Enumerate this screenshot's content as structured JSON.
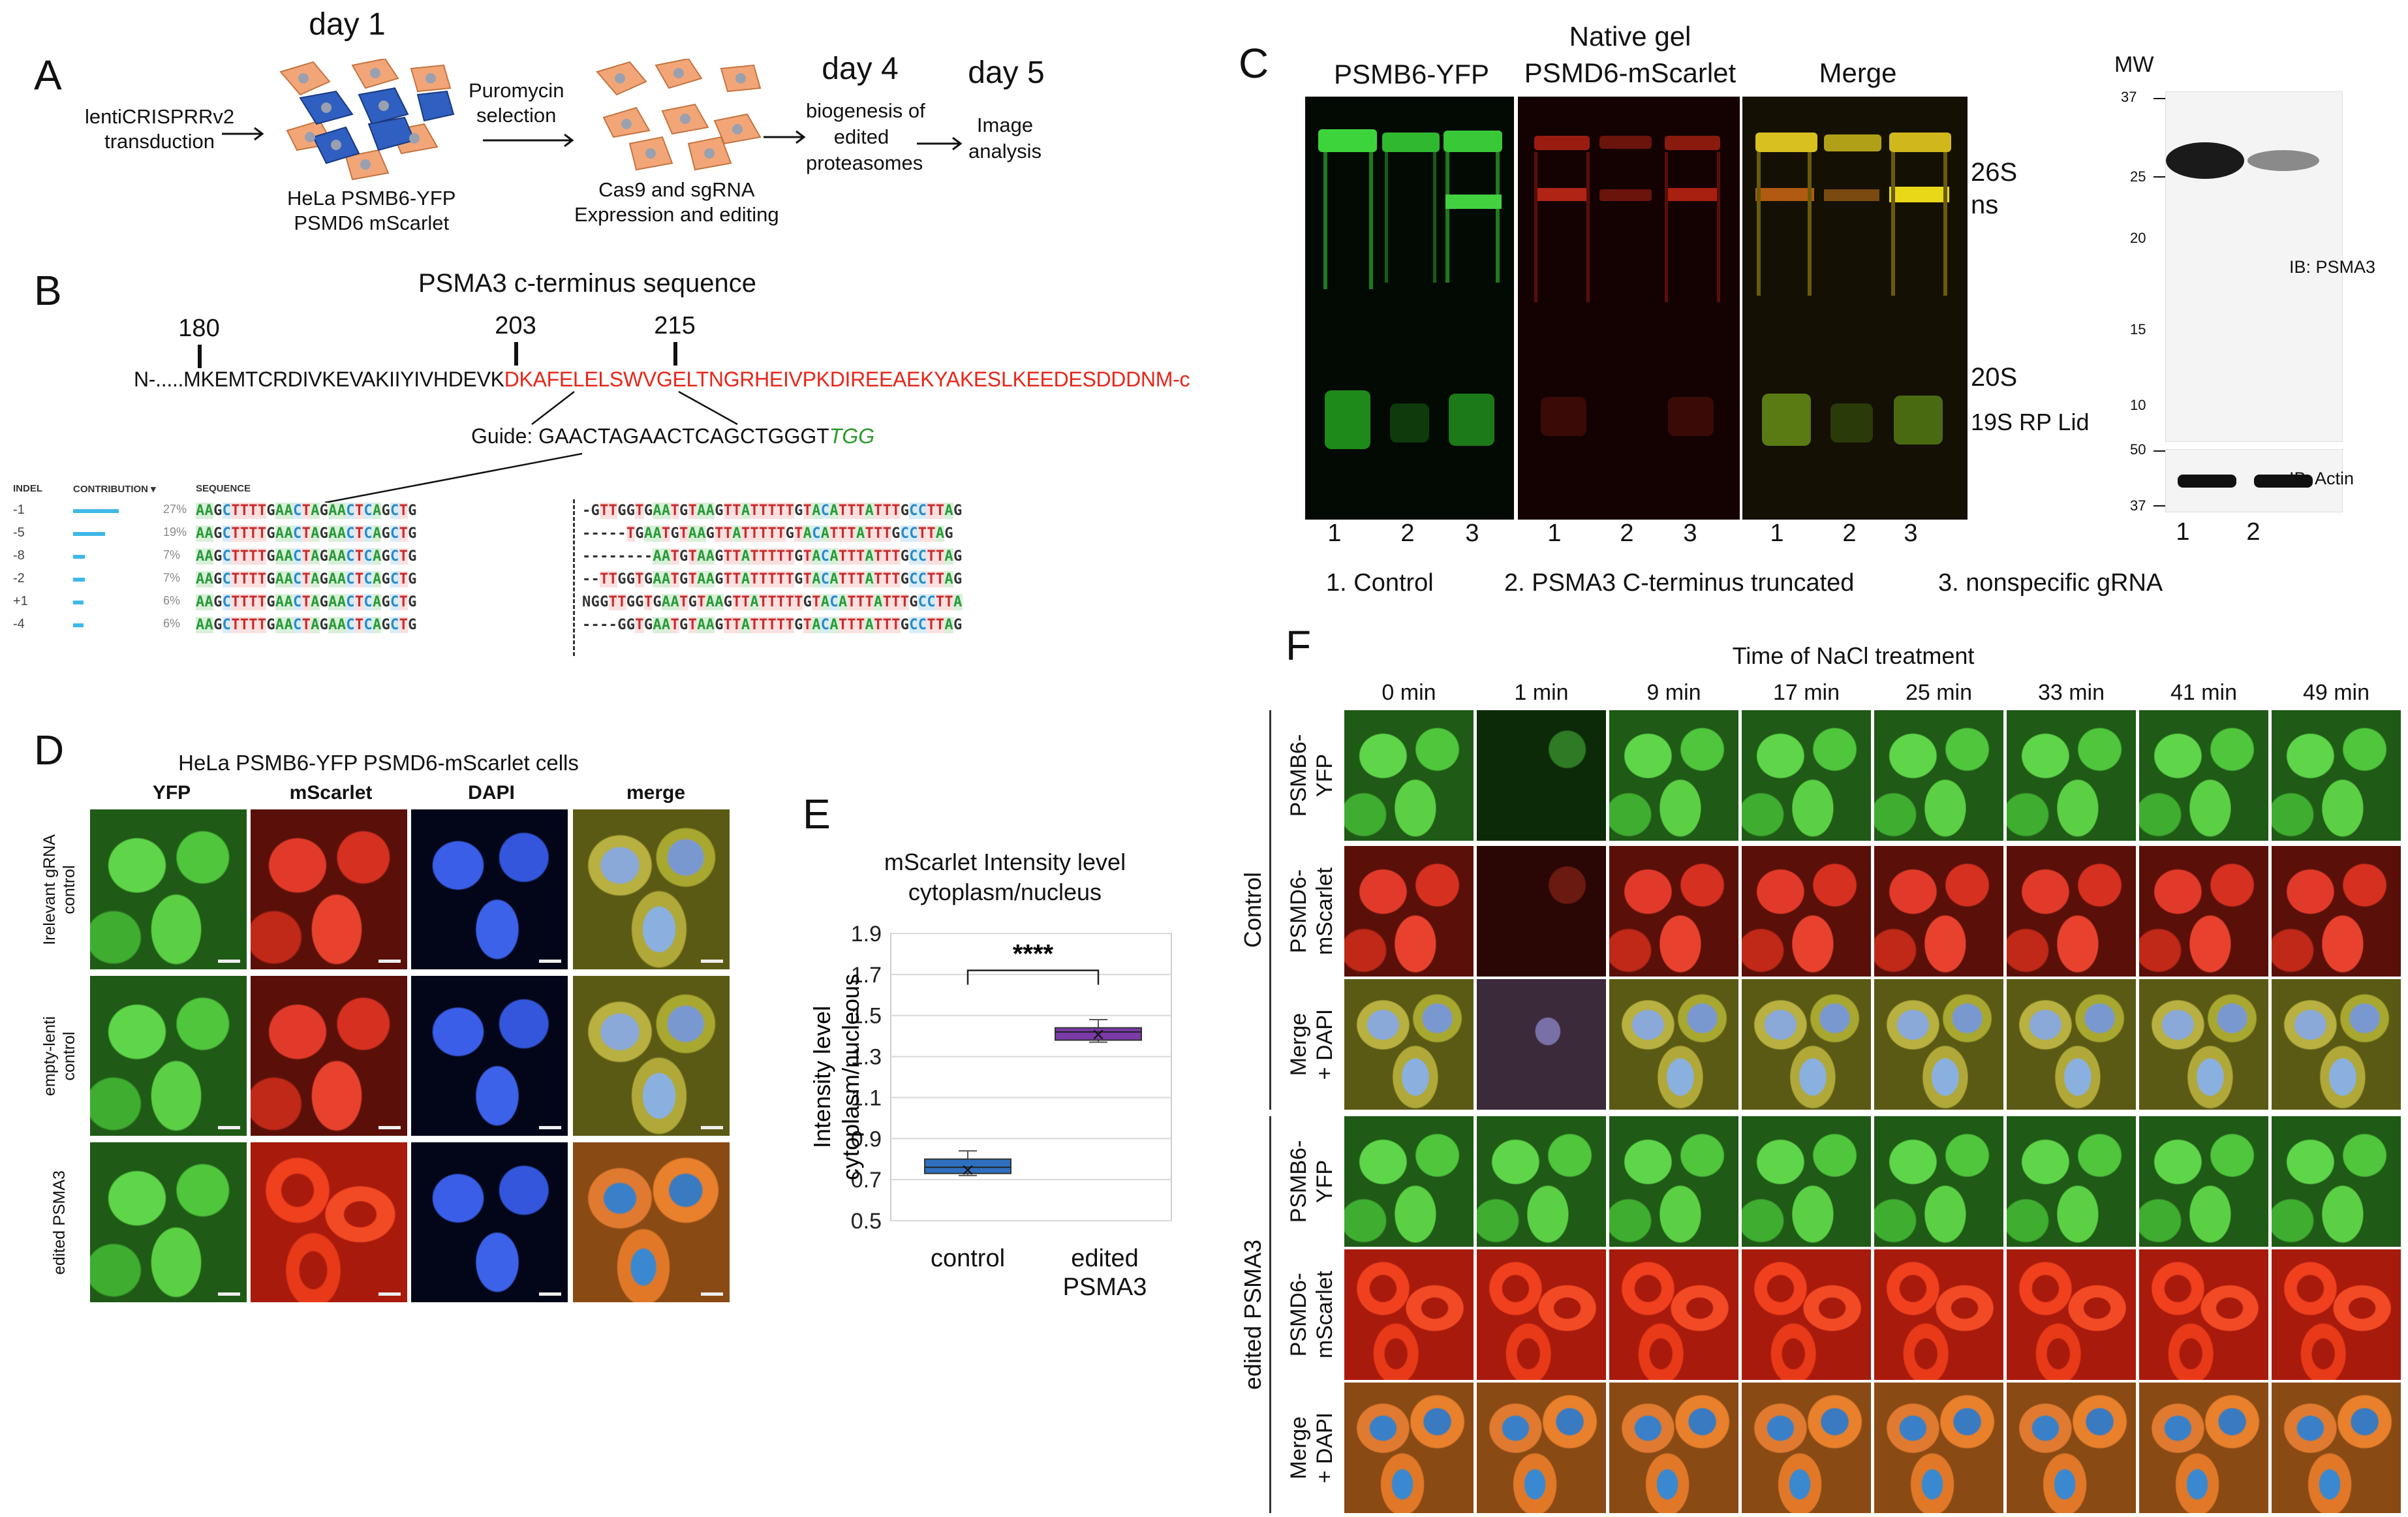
{
  "panelA": {
    "label": "A",
    "day1": "day 1",
    "transduction": [
      "lentiCRISPRRv2",
      "transduction"
    ],
    "cells_caption": [
      "HeLa PSMB6-YFP",
      "PSMD6 mScarlet"
    ],
    "selection": [
      "Puromycin",
      "selection"
    ],
    "cas9_caption": [
      "Cas9 and sgRNA",
      "Expression and editing"
    ],
    "day4": "day 4",
    "biogenesis": [
      "biogenesis of",
      "edited",
      "proteasomes"
    ],
    "day5": "day 5",
    "image_analysis": [
      "Image",
      "analysis"
    ]
  },
  "panelB": {
    "label": "B",
    "title": "PSMA3 c-terminus sequence",
    "pos1": "180",
    "pos2": "203",
    "pos3": "215",
    "seq_black": "N-.....MKEMTCRDIVKEVAKIIYIVHDEVK",
    "seq_red": "DKAFELELSWVGELTNGRHEIVPKDIREEAEKYAKESLKEEDESDDDNM-c",
    "guide_prefix": "Guide: GAACTAGAACTCAGCTGGGT",
    "guide_pam": "TGG",
    "table_headers": [
      "INDEL",
      "CONTRIBUTION ▾",
      "SEQUENCE"
    ],
    "rows": [
      {
        "indel": "-1",
        "pct": "27%",
        "left": "AAGCTTTTGAACTAGAACTCAGCTG",
        "right": "-GTTGGTGAATGTAAGTTATTTTTGTACATTTATTTGCCTTAG"
      },
      {
        "indel": "-5",
        "pct": "19%",
        "left": "AAGCTTTTGAACTAGAACTCAGCTG",
        "right": "-----TGAATGTAAGTTATTTTTGTACATTTATTTGCCTTAG"
      },
      {
        "indel": "-8",
        "pct": "7%",
        "left": "AAGCTTTTGAACTAGAACTCAGCTG",
        "right": "--------AATGTAAGTTATTTTTGTACATTTATTTGCCTTAG"
      },
      {
        "indel": "-2",
        "pct": "7%",
        "left": "AAGCTTTTGAACTAGAACTCAGCTG",
        "right": "--TTGGTGAATGTAAGTTATTTTTGTACATTTATTTGCCTTAG"
      },
      {
        "indel": "+1",
        "pct": "6%",
        "left": "AAGCTTTTGAACTAGAACTCAGCTG",
        "right": "NGGTTGGTGAATGTAAGTTATTTTTGTACATTTATTTGCCTTA"
      },
      {
        "indel": "-4",
        "pct": "6%",
        "left": "AAGCTTTTGAACTAGAACTCAGCTG",
        "right": "----GGTGAATGTAAGTTATTTTTGTACATTTATTTGCCTTAG"
      }
    ]
  },
  "panelC": {
    "label": "C",
    "native_gel": "Native gel",
    "col1": "PSMB6-YFP",
    "col2": "PSMD6-mScarlet",
    "col3": "Merge",
    "mw": "MW",
    "bands": [
      "26S",
      "ns",
      "20S",
      "19S RP Lid"
    ],
    "lanes": [
      "1",
      "2",
      "3"
    ],
    "legend": [
      "1.   Control",
      "2. PSMA3 C-terminus  truncated",
      "3. nonspecific gRNA"
    ],
    "mw_marks": [
      "37",
      "25",
      "20",
      "15",
      "10",
      "50",
      "37"
    ],
    "ib_psma3": "IB: PSMA3",
    "ib_actin": "IB: Actin",
    "wb_lanes": [
      "1",
      "2"
    ]
  },
  "panelD": {
    "label": "D",
    "title": "HeLa PSMB6-YFP PSMD6-mScarlet cells",
    "cols": [
      "YFP",
      "mScarlet",
      "DAPI",
      "merge"
    ],
    "rows": [
      "Irelevant gRNA control",
      "empty-lenti control",
      "edited PSMA3"
    ],
    "row_lines": [
      [
        "Irelevant gRNA",
        "control"
      ],
      [
        "empty-lenti",
        "control"
      ],
      [
        "edited PSMA3"
      ]
    ]
  },
  "panelE": {
    "label": "E",
    "title": [
      "mScarlet Intensity level",
      "cytoplasm/nucleus"
    ],
    "ylabel": [
      "Intensity level",
      "cytoplasm/nucleous"
    ],
    "significance": "****"
  },
  "chart_data": {
    "type": "box",
    "title": "mScarlet Intensity level cytoplasm/nucleus",
    "ylabel": "Intensity level cytoplasm/nucleous",
    "categories": [
      "control",
      "edited PSMA3"
    ],
    "category_lines": [
      [
        "control"
      ],
      [
        "edited",
        "PSMA3"
      ]
    ],
    "yticks": [
      "1.9",
      "1.7",
      "1.5",
      "1.3",
      "1.1",
      "0.9",
      "0.7",
      "0.5"
    ],
    "ylim": [
      0.5,
      1.9
    ],
    "series": [
      {
        "name": "control",
        "min": 0.72,
        "q1": 0.73,
        "median": 0.76,
        "q3": 0.8,
        "max": 0.84,
        "mean": 0.75,
        "color": "#2f6fc0"
      },
      {
        "name": "edited PSMA3",
        "min": 1.37,
        "q1": 1.38,
        "median": 1.42,
        "q3": 1.44,
        "max": 1.48,
        "mean": 1.41,
        "color": "#7a3aa8"
      }
    ],
    "grid": true
  },
  "panelF": {
    "label": "F",
    "title": "Time of NaCl treatment",
    "times": [
      "0 min",
      "1 min",
      "9 min",
      "17 min",
      "25 min",
      "33 min",
      "41 min",
      "49 min"
    ],
    "group_control": "Control",
    "group_edited": "edited PSMA3",
    "row_labels": [
      [
        "PSMB6-",
        "YFP"
      ],
      [
        "PSMD6-",
        "mScarlet"
      ],
      [
        "Merge",
        "+ DAPI"
      ]
    ]
  }
}
